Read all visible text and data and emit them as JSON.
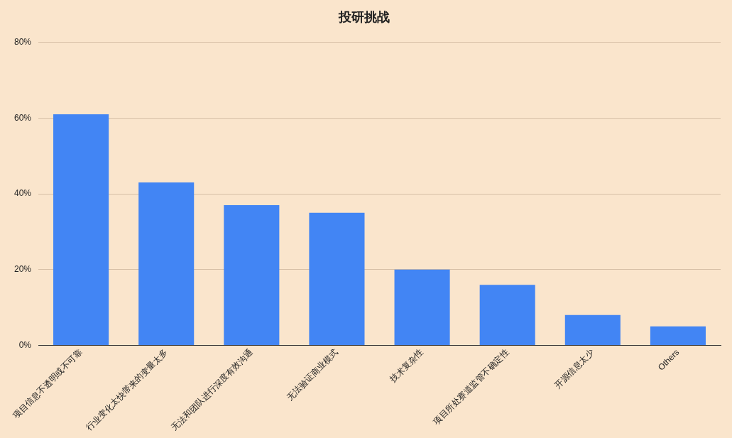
{
  "chart_data": {
    "type": "bar",
    "title": "投研挑战",
    "categories": [
      "项目信息不透明或不可靠",
      "行业变化太快带来的变量太多",
      "无法和团队进行深度有效沟通",
      "无法验证商业模式",
      "技术复杂性",
      "项目所处赛道监管不确定性",
      "开源信息太少",
      "Others"
    ],
    "values": [
      61,
      43,
      37,
      35,
      20,
      16,
      8,
      5
    ],
    "color": "#4285f4",
    "ylim": [
      0,
      80
    ],
    "yticks": [
      {
        "value": 0,
        "label": "0%"
      },
      {
        "value": 20,
        "label": "20%"
      },
      {
        "value": 40,
        "label": "40%"
      },
      {
        "value": 60,
        "label": "60%"
      },
      {
        "value": 80,
        "label": "80%"
      }
    ],
    "grid": "y"
  }
}
